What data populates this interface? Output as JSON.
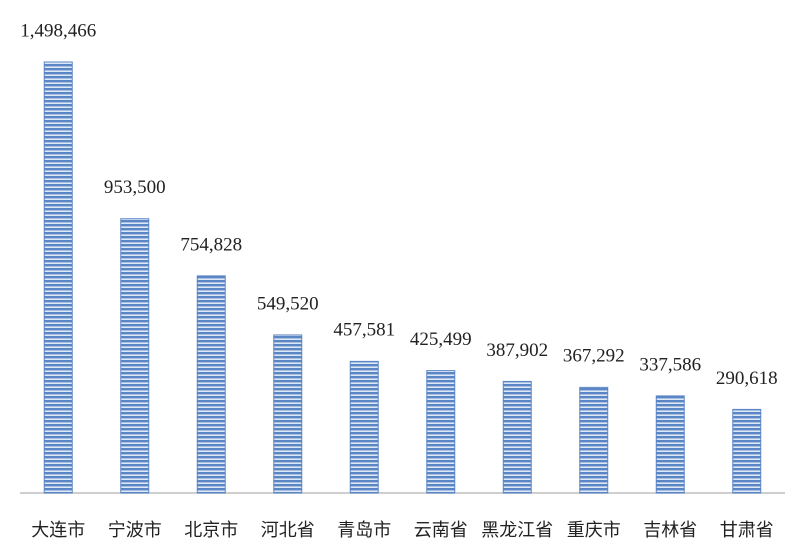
{
  "chart_data": {
    "type": "bar",
    "categories": [
      "大连市",
      "宁波市",
      "北京市",
      "河北省",
      "青岛市",
      "云南省",
      "黑龙江省",
      "重庆市",
      "吉林省",
      "甘肃省"
    ],
    "values": [
      1498466,
      953500,
      754828,
      549520,
      457581,
      425499,
      387902,
      367292,
      337586,
      290618
    ],
    "value_labels": [
      "1,498,466",
      "953,500",
      "754,828",
      "549,520",
      "457,581",
      "425,499",
      "387,902",
      "367,292",
      "337,586",
      "290,618"
    ],
    "color": "#5b86c5"
  }
}
